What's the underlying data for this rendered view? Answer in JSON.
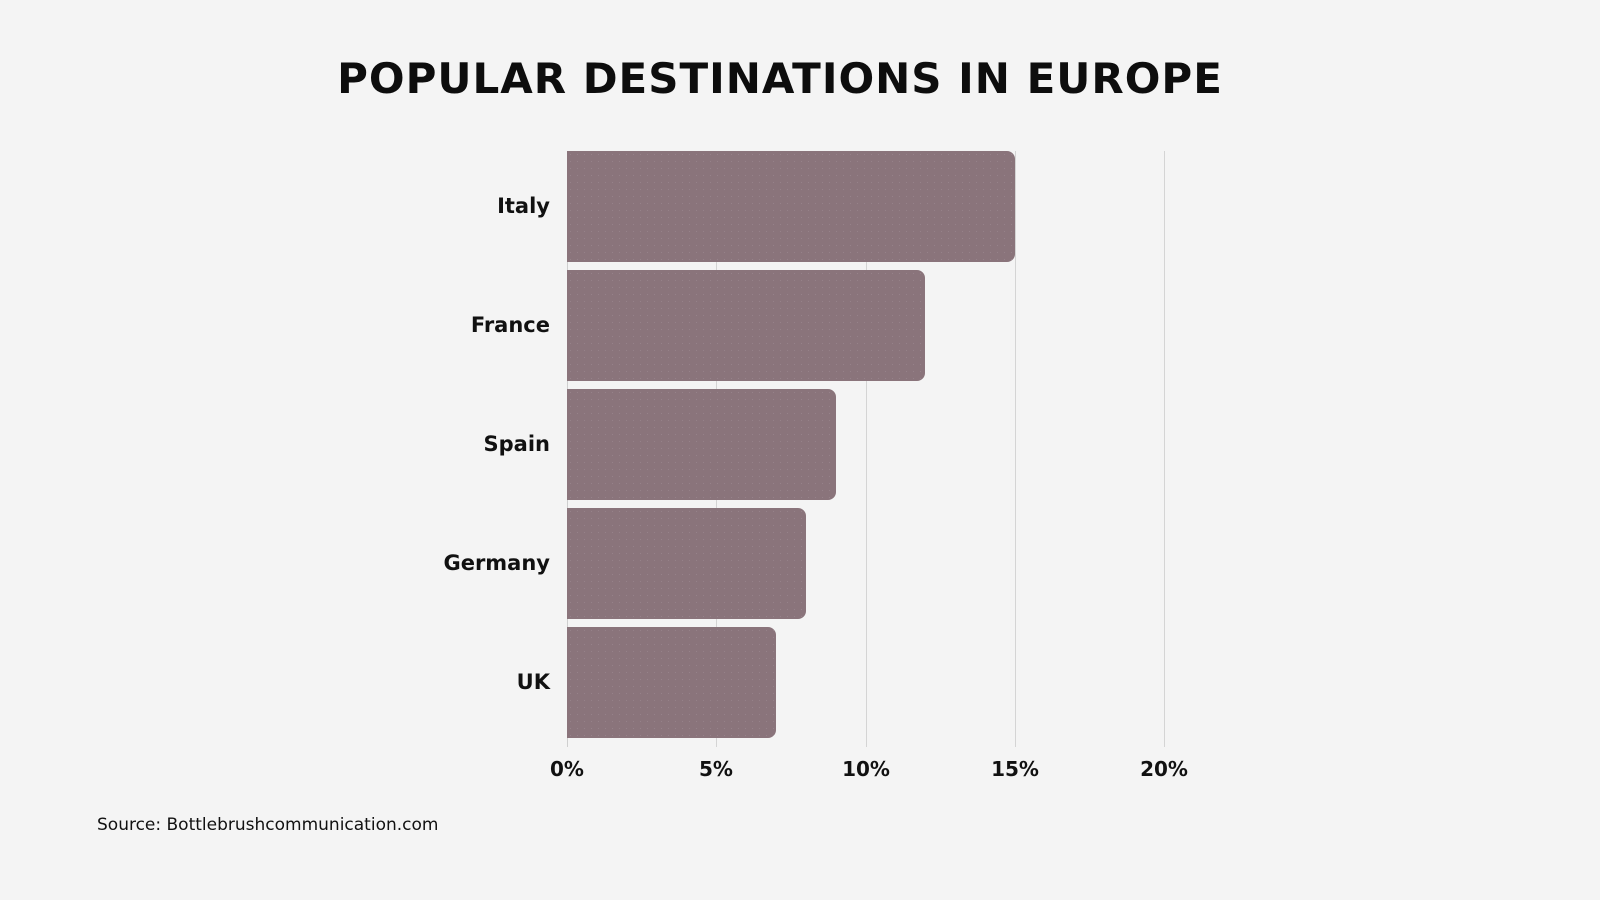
{
  "title": "POPULAR DESTINATIONS IN EUROPE",
  "source": "Source: Bottlebrushcommunication.com",
  "colors": {
    "background": "#f4f4f4",
    "bar": "#8a747b",
    "gridline": "#d4d4d4",
    "text": "#111111"
  },
  "chart_data": {
    "type": "bar",
    "orientation": "horizontal",
    "title": "POPULAR DESTINATIONS IN EUROPE",
    "categories": [
      "Italy",
      "France",
      "Spain",
      "Germany",
      "UK"
    ],
    "values": [
      15,
      12,
      9,
      8,
      7
    ],
    "unit": "%",
    "xlabel": "",
    "ylabel": "",
    "xlim": [
      0,
      20
    ],
    "x_ticks": [
      "0%",
      "5%",
      "10%",
      "15%",
      "20%"
    ],
    "grid": "vertical",
    "legend": "none",
    "source": "Source: Bottlebrushcommunication.com"
  }
}
